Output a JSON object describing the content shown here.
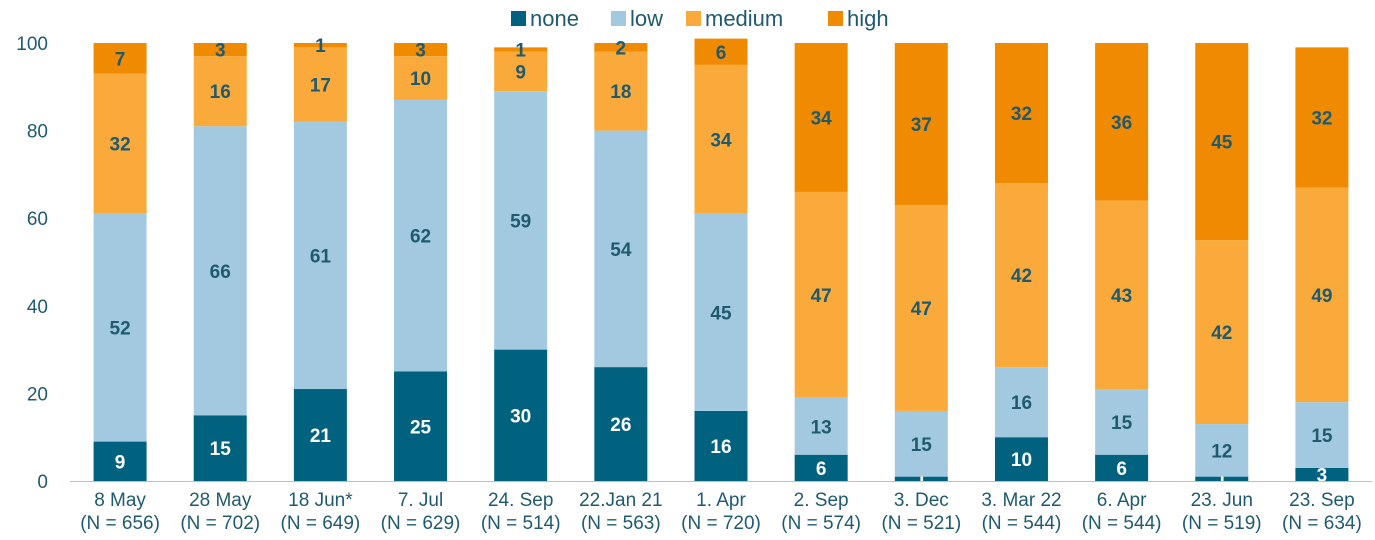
{
  "chart_data": {
    "type": "bar",
    "stacked": true,
    "categories": [
      [
        "8 May",
        "(N = 656)"
      ],
      [
        "28 May",
        "(N = 702)"
      ],
      [
        "18 Jun*",
        "(N = 649)"
      ],
      [
        "7. Jul",
        "(N = 629)"
      ],
      [
        "24. Sep",
        "(N = 514)"
      ],
      [
        "22.Jan 21",
        "(N = 563)"
      ],
      [
        "1. Apr",
        "(N = 720)"
      ],
      [
        "2. Sep",
        "(N = 574)"
      ],
      [
        "3. Dec",
        "(N = 521)"
      ],
      [
        "3. Mar 22",
        "(N = 544)"
      ],
      [
        "6. Apr",
        "(N = 544)"
      ],
      [
        "23. Jun",
        "(N = 519)"
      ],
      [
        "23. Sep",
        "(N = 634)"
      ]
    ],
    "series": [
      {
        "name": "none",
        "color": "#00627f",
        "label_color": "#ffffff",
        "values": [
          9,
          15,
          21,
          25,
          30,
          26,
          16,
          6,
          1,
          10,
          6,
          1,
          3
        ]
      },
      {
        "name": "low",
        "color": "#a3c9e0",
        "label_color": "#1f5a6f",
        "values": [
          52,
          66,
          61,
          62,
          59,
          54,
          45,
          13,
          15,
          16,
          15,
          12,
          15
        ]
      },
      {
        "name": "medium",
        "color": "#f9aa3a",
        "label_color": "#1f5a6f",
        "values": [
          32,
          16,
          17,
          10,
          9,
          18,
          34,
          47,
          47,
          42,
          43,
          42,
          49
        ]
      },
      {
        "name": "high",
        "color": "#f08a00",
        "label_color": "#1f5a6f",
        "values": [
          7,
          3,
          1,
          3,
          1,
          2,
          6,
          34,
          37,
          32,
          36,
          45,
          32
        ]
      }
    ],
    "ylim": [
      0,
      100
    ],
    "yticks": [
      0,
      20,
      40,
      60,
      80,
      100
    ],
    "grid": false,
    "legend_position": "top-center",
    "title": "",
    "xlabel": "",
    "ylabel": ""
  }
}
